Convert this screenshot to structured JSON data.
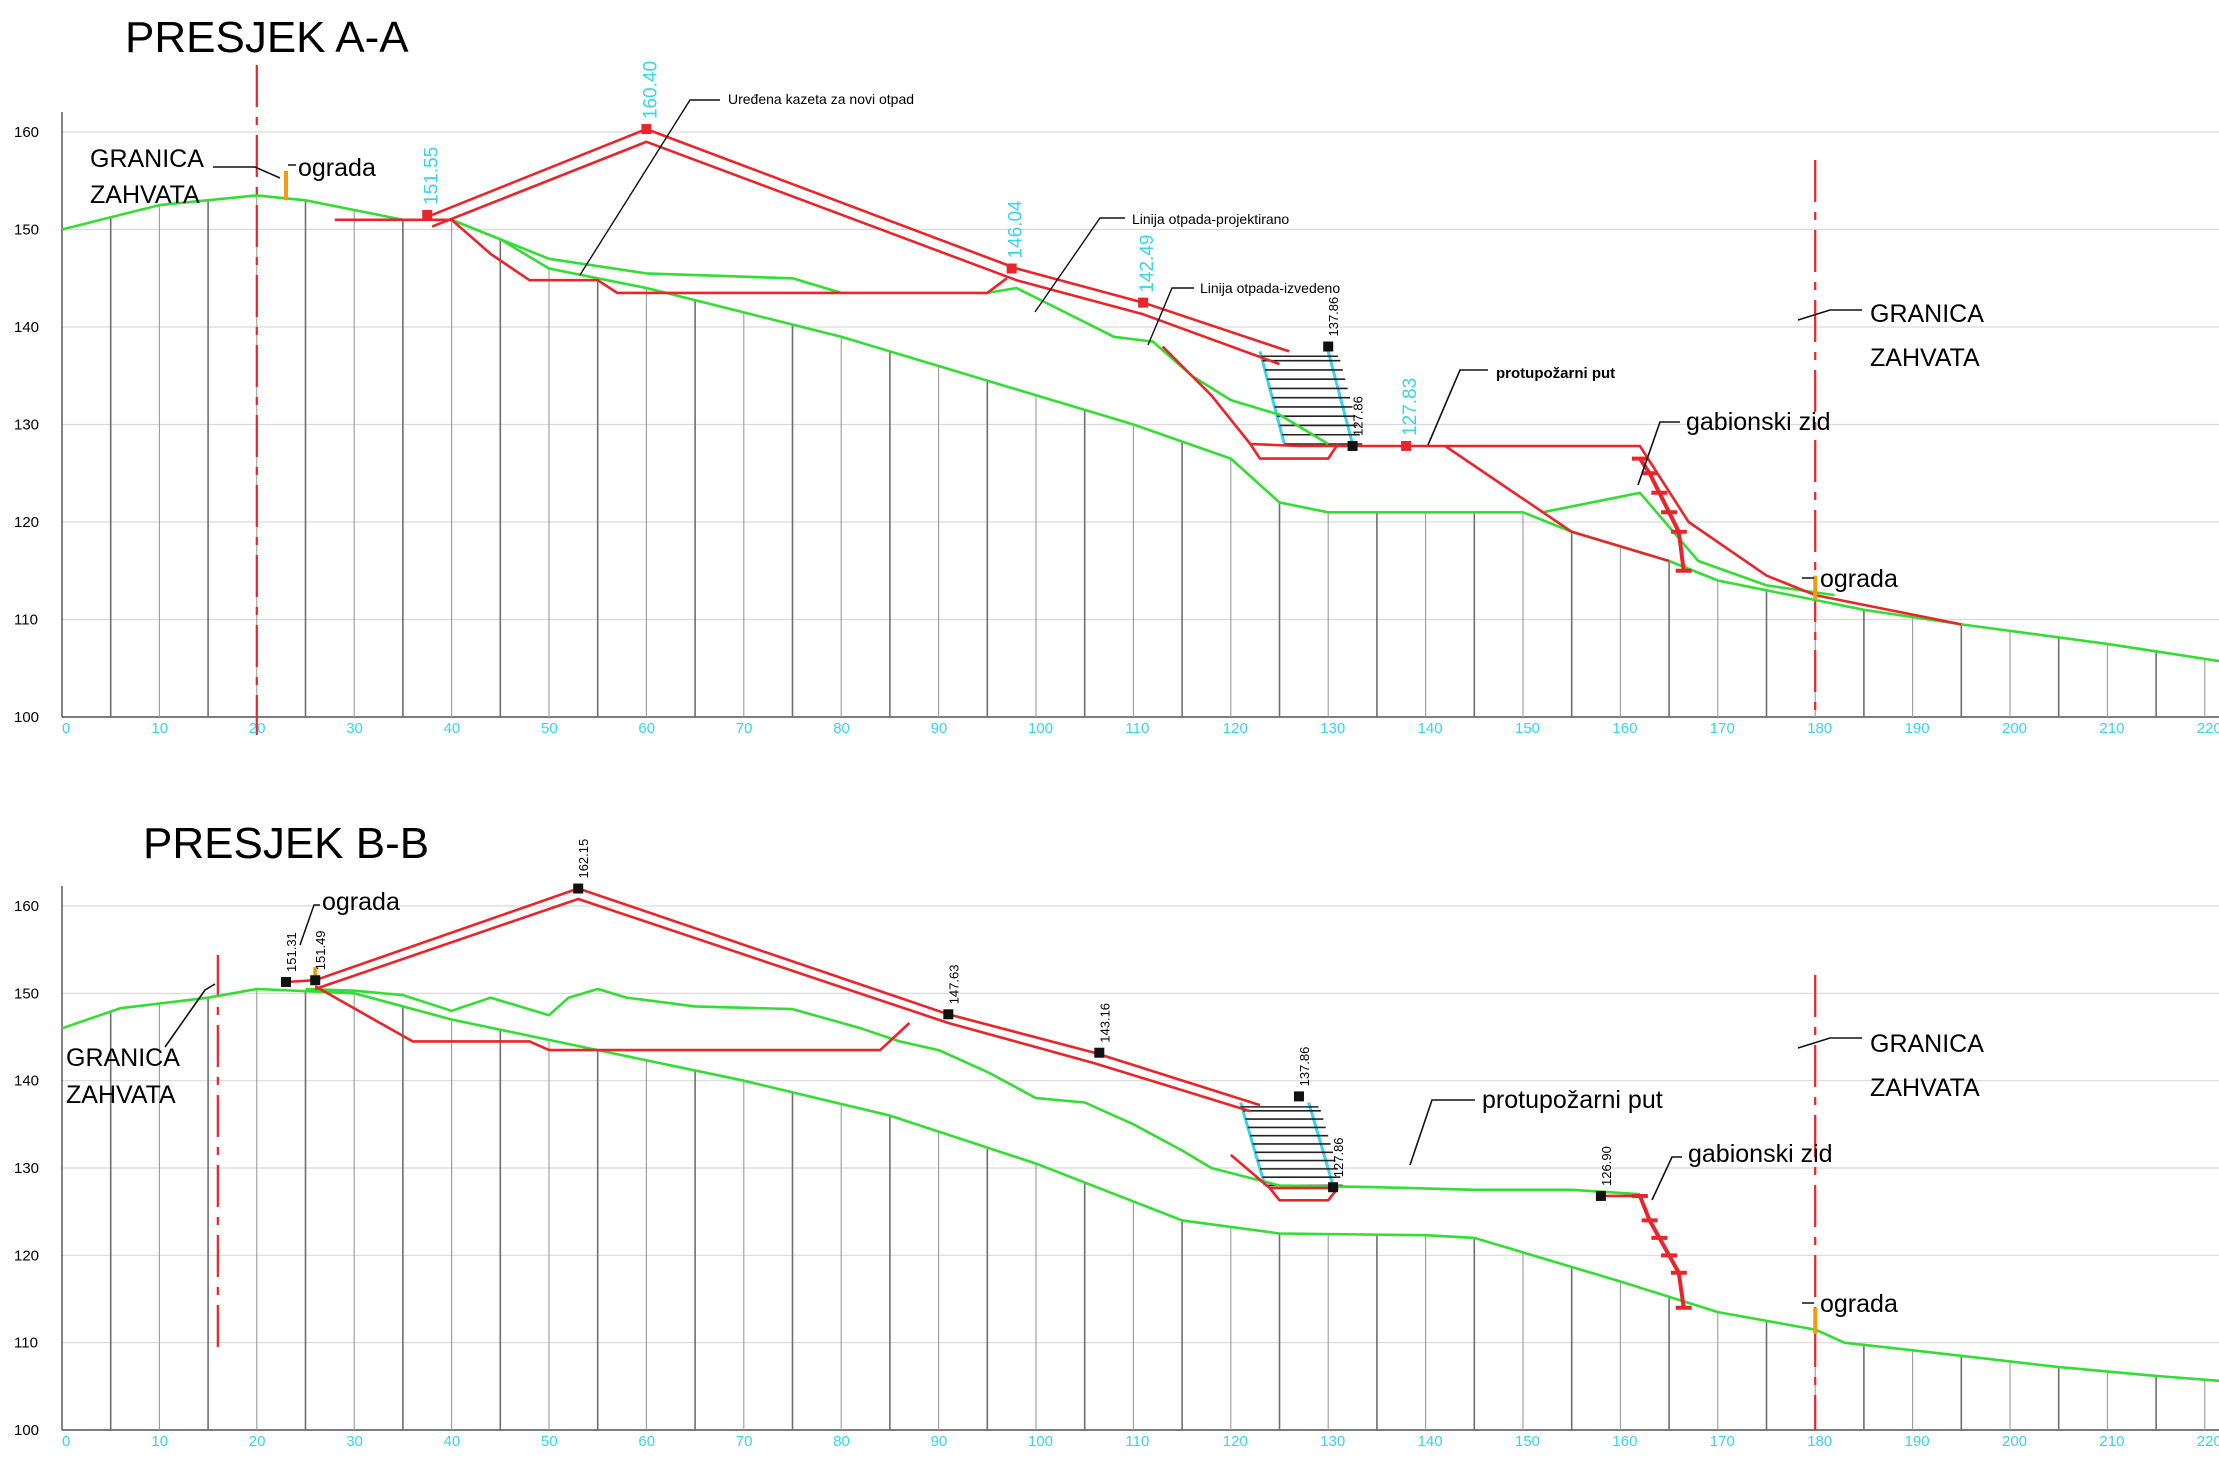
{
  "colors": {
    "terrain": "#33dd33",
    "design": "#e8252a",
    "boundary": "#e8252a",
    "fence": "#f39c12",
    "axis_x": "#37d4ea",
    "grid_vertical": "#777777",
    "grid_horizontal": "#d9d9d9",
    "ladder": "#37d4ea",
    "ink": "#111111"
  },
  "chart_data": [
    {
      "type": "line",
      "title": "PRESJEK A-A",
      "xlim": [
        0,
        223
      ],
      "ylim": [
        100,
        161
      ],
      "x_ticks": [
        "0",
        "10",
        "20",
        "30",
        "40",
        "50",
        "60",
        "70",
        "80",
        "90",
        "100",
        "110",
        "120",
        "130",
        "140",
        "150",
        "160",
        "170",
        "180",
        "190",
        "200",
        "210",
        "220.22"
      ],
      "y_ticks": [
        "100",
        "110",
        "120",
        "130",
        "140",
        "150",
        "160"
      ],
      "boundaries_x": [
        20,
        180
      ],
      "series": [
        {
          "role": "terrain",
          "points": [
            [
              0,
              150
            ],
            [
              10,
              152.5
            ],
            [
              20,
              153.5
            ],
            [
              25,
              153
            ],
            [
              30,
              152
            ],
            [
              35,
              151
            ],
            [
              40,
              151
            ],
            [
              45,
              149
            ],
            [
              50,
              146
            ],
            [
              55,
              145
            ],
            [
              60,
              144
            ],
            [
              70,
              141.5
            ],
            [
              80,
              139
            ],
            [
              90,
              136
            ],
            [
              100,
              133
            ],
            [
              110,
              130
            ],
            [
              120,
              126.5
            ],
            [
              125,
              122
            ],
            [
              130,
              121
            ],
            [
              140,
              121
            ],
            [
              150,
              121
            ],
            [
              155,
              119
            ],
            [
              165,
              116
            ],
            [
              170,
              114
            ],
            [
              175,
              113
            ],
            [
              180,
              112
            ],
            [
              185,
              111
            ],
            [
              195,
              109.5
            ],
            [
              210,
              107.5
            ],
            [
              223,
              105.5
            ]
          ]
        },
        {
          "role": "terrain",
          "points": [
            [
              40,
              151
            ],
            [
              50,
              147
            ],
            [
              60,
              145.5
            ],
            [
              75,
              145
            ],
            [
              80,
              143.5
            ]
          ]
        },
        {
          "role": "terrain",
          "points": [
            [
              95,
              143.5
            ],
            [
              98,
              144
            ],
            [
              102,
              142
            ],
            [
              108,
              139
            ],
            [
              112,
              138.5
            ],
            [
              116,
              135
            ],
            [
              120,
              132.5
            ],
            [
              125,
              131
            ],
            [
              130,
              128
            ]
          ]
        },
        {
          "role": "terrain",
          "points": [
            [
              152,
              121
            ],
            [
              162,
              123
            ],
            [
              168,
              116
            ],
            [
              175,
              113.5
            ],
            [
              182,
              112.5
            ]
          ]
        },
        {
          "role": "design",
          "points": [
            [
              38,
              151.5
            ],
            [
              60,
              160.3
            ],
            [
              98,
              146
            ],
            [
              111,
              142.5
            ],
            [
              126,
              137.5
            ]
          ]
        },
        {
          "role": "design",
          "points": [
            [
              38,
              150.3
            ],
            [
              60,
              159
            ],
            [
              98,
              144.8
            ],
            [
              111,
              141.3
            ],
            [
              125,
              136.2
            ]
          ]
        },
        {
          "role": "design",
          "points": [
            [
              28,
              151
            ],
            [
              40,
              151
            ],
            [
              44,
              147.5
            ],
            [
              48,
              144.8
            ],
            [
              55,
              144.8
            ],
            [
              57,
              143.5
            ],
            [
              95,
              143.5
            ],
            [
              97,
              145
            ]
          ]
        },
        {
          "role": "design",
          "points": [
            [
              113,
              138
            ],
            [
              118,
              133
            ],
            [
              122,
              128
            ],
            [
              127,
              127.8
            ],
            [
              137,
              127.8
            ],
            [
              142,
              127.8
            ],
            [
              162,
              127.8
            ],
            [
              167,
              120
            ],
            [
              175,
              114.5
            ],
            [
              180,
              112.5
            ],
            [
              195,
              109.5
            ]
          ]
        },
        {
          "role": "design",
          "points": [
            [
              142,
              127.8
            ],
            [
              155,
              119
            ],
            [
              165,
              116
            ]
          ]
        },
        {
          "role": "design",
          "points": [
            [
              122,
              128
            ],
            [
              123,
              126.5
            ],
            [
              130,
              126.5
            ],
            [
              131,
              128
            ]
          ]
        },
        {
          "role": "fence",
          "points": [
            [
              23,
              153
            ],
            [
              23,
              156
            ]
          ]
        },
        {
          "role": "fence",
          "points": [
            [
              180,
              112
            ],
            [
              180,
              114.5
            ]
          ]
        },
        {
          "role": "wall",
          "points": [
            [
              162,
              126.5
            ],
            [
              163,
              125
            ],
            [
              164,
              123
            ],
            [
              165,
              121
            ],
            [
              166,
              119
            ],
            [
              166.5,
              115
            ]
          ]
        }
      ],
      "elevations": [
        {
          "label": "151.55",
          "x": 37.5,
          "y": 151.5,
          "color": "cyan"
        },
        {
          "label": "160.40",
          "x": 60,
          "y": 160.3,
          "color": "cyan"
        },
        {
          "label": "146.04",
          "x": 97.5,
          "y": 146,
          "color": "cyan"
        },
        {
          "label": "142.49",
          "x": 111,
          "y": 142.5,
          "color": "cyan"
        },
        {
          "label": "137.86",
          "x": 130,
          "y": 138,
          "color": "black"
        },
        {
          "label": "127.86",
          "x": 132.5,
          "y": 127.8,
          "color": "black"
        },
        {
          "label": "127.83",
          "x": 138,
          "y": 127.8,
          "color": "cyan"
        }
      ],
      "annotations": {
        "granica_left": "GRANICA\nZAHVATA",
        "ograda_top": "ograda",
        "kazeta": "Uređena kazeta za novi otpad",
        "projektirano": "Linija otpada-projektirano",
        "izvedeno": "Linija otpada-izvedeno",
        "protupozarni": "protupožarni put",
        "gabionski": "gabionski zid",
        "granica_right": "GRANICA\nZAHVATA",
        "ograda_bottom": "ograda"
      }
    },
    {
      "type": "line",
      "title": "PRESJEK B-B",
      "xlim": [
        0,
        223
      ],
      "ylim": [
        100,
        163
      ],
      "x_ticks": [
        "0",
        "10",
        "20",
        "30",
        "40",
        "50",
        "60",
        "70",
        "80",
        "90",
        "100",
        "110",
        "120",
        "130",
        "140",
        "150",
        "160",
        "170",
        "180",
        "190",
        "200",
        "210",
        "220.221"
      ],
      "y_ticks": [
        "100",
        "110",
        "120",
        "130",
        "140",
        "150",
        "160"
      ],
      "boundaries_x": [
        16,
        180
      ],
      "series": [
        {
          "role": "terrain",
          "points": [
            [
              0,
              146
            ],
            [
              6,
              148.3
            ],
            [
              15,
              149.5
            ],
            [
              20,
              150.5
            ],
            [
              30,
              150
            ],
            [
              40,
              147
            ],
            [
              55,
              143.5
            ],
            [
              70,
              140
            ],
            [
              85,
              136
            ],
            [
              100,
              130.5
            ],
            [
              115,
              124
            ],
            [
              125,
              122.5
            ],
            [
              140,
              122.3
            ],
            [
              145,
              122
            ],
            [
              160,
              117
            ],
            [
              170,
              113.5
            ],
            [
              180,
              111.5
            ],
            [
              183,
              110
            ],
            [
              195,
              108.5
            ],
            [
              205,
              107.2
            ],
            [
              215,
              106.2
            ],
            [
              223,
              105.5
            ]
          ]
        },
        {
          "role": "terrain",
          "points": [
            [
              25,
              150.5
            ],
            [
              30,
              150.3
            ],
            [
              35,
              149.8
            ],
            [
              40,
              148
            ],
            [
              44,
              149.5
            ],
            [
              50,
              147.5
            ],
            [
              52,
              149.5
            ],
            [
              55,
              150.5
            ],
            [
              58,
              149.5
            ],
            [
              65,
              148.5
            ],
            [
              75,
              148.2
            ],
            [
              82,
              146
            ],
            [
              86,
              144.5
            ],
            [
              90,
              143.5
            ],
            [
              95,
              141
            ],
            [
              100,
              138
            ],
            [
              105,
              137.5
            ],
            [
              110,
              135
            ],
            [
              115,
              132
            ],
            [
              118,
              130
            ],
            [
              125,
              128
            ],
            [
              135,
              127.8
            ],
            [
              145,
              127.5
            ],
            [
              155,
              127.5
            ],
            [
              162,
              127
            ]
          ]
        },
        {
          "role": "design",
          "points": [
            [
              23,
              151.3
            ],
            [
              26,
              151.5
            ],
            [
              53,
              162
            ],
            [
              91,
              147.6
            ],
            [
              106,
              143.2
            ],
            [
              123,
              137.2
            ]
          ]
        },
        {
          "role": "design",
          "points": [
            [
              26,
              150.5
            ],
            [
              53,
              160.8
            ],
            [
              91,
              146.6
            ],
            [
              106,
              142
            ],
            [
              122,
              136.5
            ]
          ]
        },
        {
          "role": "design",
          "points": [
            [
              26,
              150.8
            ],
            [
              36,
              144.5
            ],
            [
              48,
              144.5
            ],
            [
              50,
              143.5
            ],
            [
              84,
              143.5
            ],
            [
              87,
              146.6
            ]
          ]
        },
        {
          "role": "design",
          "points": [
            [
              120,
              131.5
            ],
            [
              124,
              127.7
            ],
            [
              131,
              127.7
            ]
          ]
        },
        {
          "role": "design",
          "points": [
            [
              124,
              127.7
            ],
            [
              125,
              126.3
            ],
            [
              130,
              126.3
            ],
            [
              131,
              127.7
            ]
          ]
        },
        {
          "role": "design",
          "points": [
            [
              158,
              126.8
            ],
            [
              162,
              126.8
            ]
          ]
        },
        {
          "role": "fence",
          "points": [
            [
              26,
              151.5
            ],
            [
              26,
              153
            ]
          ]
        },
        {
          "role": "fence",
          "points": [
            [
              180,
              111
            ],
            [
              180,
              114
            ]
          ]
        },
        {
          "role": "wall",
          "points": [
            [
              162,
              126.8
            ],
            [
              163,
              124
            ],
            [
              164,
              122
            ],
            [
              165,
              120
            ],
            [
              166,
              118
            ],
            [
              166.5,
              114
            ]
          ]
        }
      ],
      "elevations": [
        {
          "label": "151.31",
          "x": 23,
          "y": 151.3,
          "color": "black"
        },
        {
          "label": "151.49",
          "x": 26,
          "y": 151.5,
          "color": "black"
        },
        {
          "label": "162.15",
          "x": 53,
          "y": 162,
          "color": "black"
        },
        {
          "label": "147.63",
          "x": 91,
          "y": 147.6,
          "color": "black"
        },
        {
          "label": "143.16",
          "x": 106.5,
          "y": 143.2,
          "color": "black"
        },
        {
          "label": "137.86",
          "x": 127,
          "y": 138.2,
          "color": "black"
        },
        {
          "label": "127.86",
          "x": 130.5,
          "y": 127.8,
          "color": "black"
        },
        {
          "label": "126.90",
          "x": 158,
          "y": 126.8,
          "color": "black"
        }
      ],
      "annotations": {
        "granica_left": "GRANICA\nZAHVATA",
        "ograda_top": "ograda",
        "protupozarni": "protupožarni put",
        "gabionski": "gabionski zid",
        "granica_right": "GRANICA\nZAHVATA",
        "ograda_bottom": "ograda"
      }
    }
  ]
}
